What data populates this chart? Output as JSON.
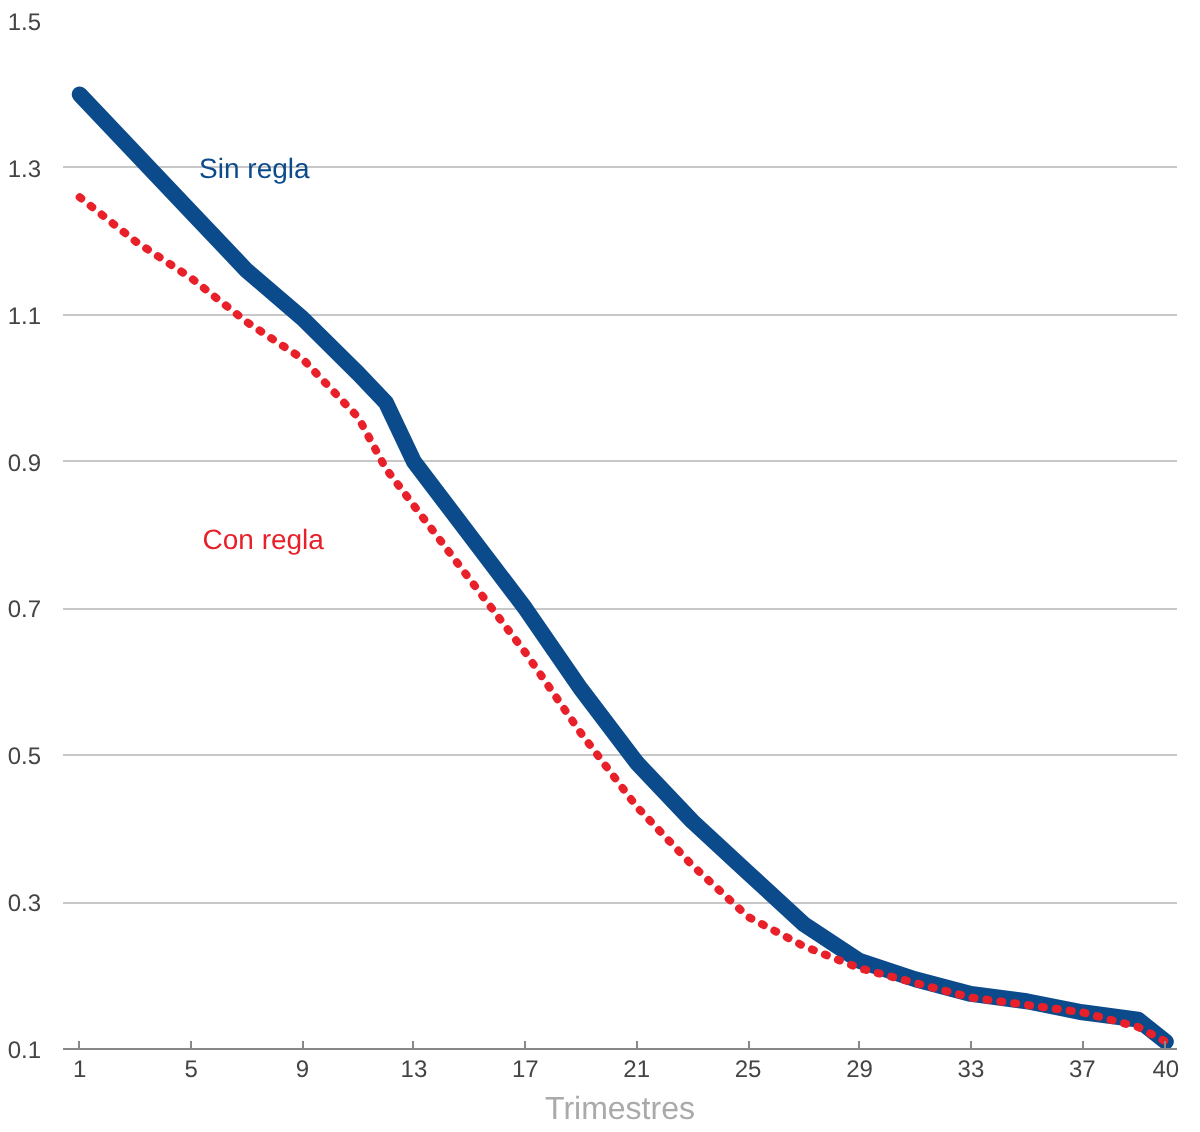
{
  "chart_data": {
    "type": "line",
    "xlabel": "Trimestres",
    "xlim": [
      0.4,
      40.4
    ],
    "xticks": [
      1,
      5,
      9,
      13,
      17,
      21,
      25,
      29,
      33,
      37,
      40
    ],
    "ylim": [
      0.1,
      1.5
    ],
    "yticks": [
      0.1,
      0.3,
      0.5,
      0.7,
      0.9,
      1.1,
      1.3,
      1.5
    ],
    "grid": "y",
    "x": [
      1,
      3,
      5,
      7,
      9,
      11,
      12,
      13,
      15,
      17,
      19,
      21,
      23,
      25,
      27,
      29,
      31,
      33,
      35,
      37,
      39,
      40
    ],
    "series": [
      {
        "name": "Sin regla",
        "color": "#0b4a8b",
        "line_style": "solid",
        "values": [
          1.4,
          1.32,
          1.24,
          1.16,
          1.095,
          1.02,
          0.98,
          0.9,
          0.8,
          0.7,
          0.59,
          0.49,
          0.41,
          0.34,
          0.27,
          0.22,
          0.195,
          0.175,
          0.165,
          0.15,
          0.14,
          0.11
        ]
      },
      {
        "name": "Con regla",
        "color": "#e8202a",
        "line_style": "dotted",
        "values": [
          1.26,
          1.2,
          1.15,
          1.09,
          1.04,
          0.96,
          0.89,
          0.84,
          0.74,
          0.64,
          0.53,
          0.43,
          0.35,
          0.28,
          0.24,
          0.21,
          0.19,
          0.17,
          0.16,
          0.15,
          0.13,
          0.11
        ]
      }
    ]
  }
}
